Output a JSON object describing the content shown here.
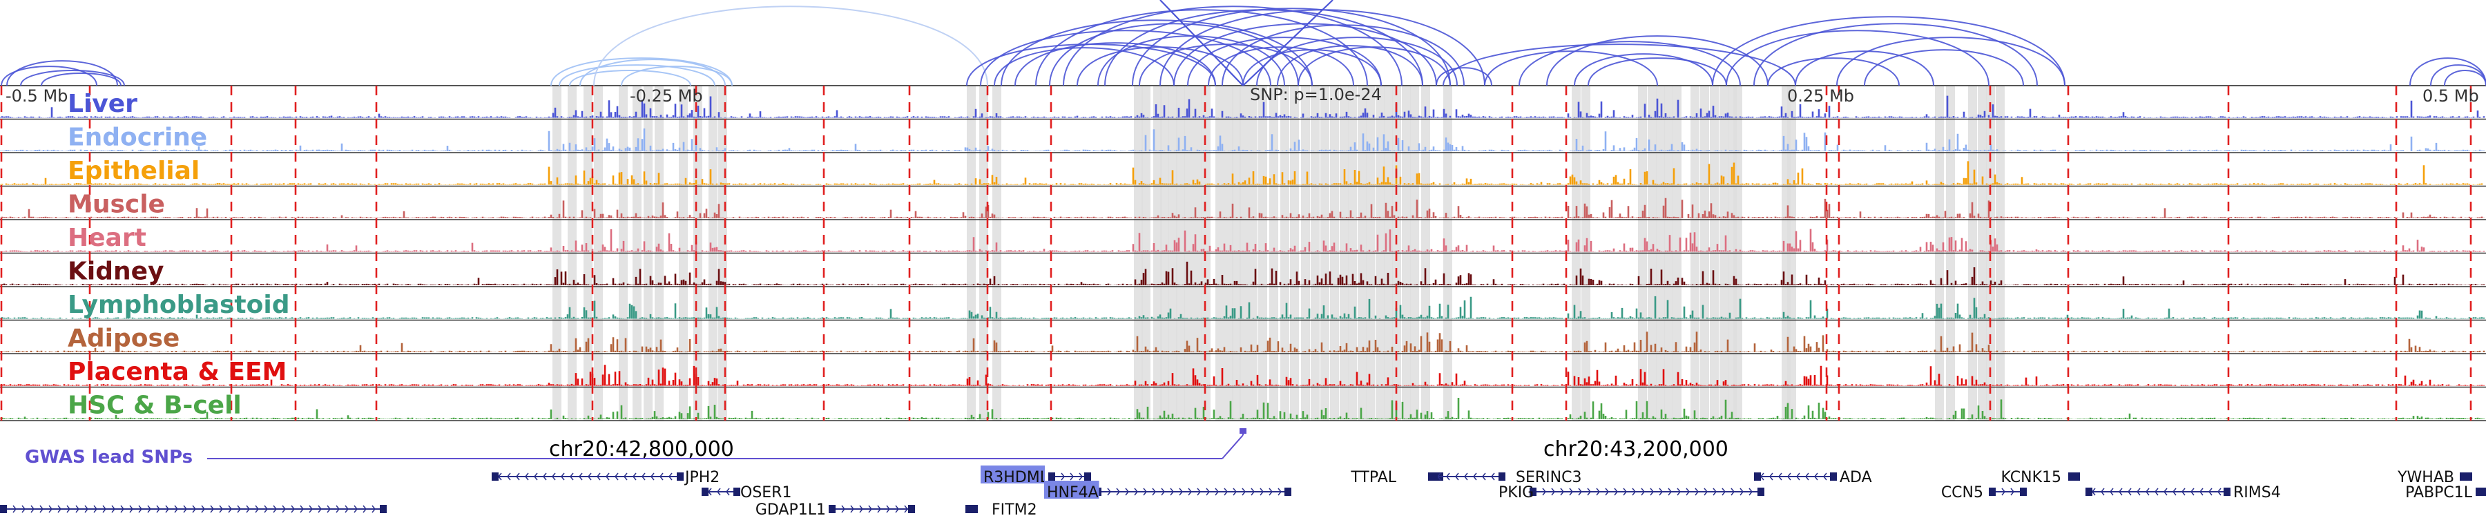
{
  "chart_data": {
    "type": "genome-browser",
    "chromosome": "chr20",
    "tracks": [
      {
        "name": "Liver",
        "color": "#4b55d6"
      },
      {
        "name": "Endocrine",
        "color": "#8fb1f2"
      },
      {
        "name": "Epithelial",
        "color": "#f5a00a"
      },
      {
        "name": "Muscle",
        "color": "#c96060"
      },
      {
        "name": "Heart",
        "color": "#dc6e80"
      },
      {
        "name": "Kidney",
        "color": "#6b0f12"
      },
      {
        "name": "Lymphoblastoid",
        "color": "#3a9a86"
      },
      {
        "name": "Adipose",
        "color": "#b4643c"
      },
      {
        "name": "Placenta & EEM",
        "color": "#e01010"
      },
      {
        "name": "HSC & B-cell",
        "color": "#4ba648"
      }
    ],
    "tick_labels": [
      "-0.5 Mb",
      "-0.25 Mb",
      "0.25 Mb",
      "0.5 Mb"
    ],
    "snp_label": "SNP: p=1.0e-24",
    "coordinate_labels": [
      "chr20:42,800,000",
      "chr20:43,200,000"
    ],
    "gwas_label": "GWAS lead SNPs",
    "gwas_color": "#6050d0",
    "loop_color": "#4b55d6",
    "highlight_color": "#7a86e6",
    "genes": [
      {
        "name": "JPH2",
        "row": 1
      },
      {
        "name": "OSER1",
        "row": 2
      },
      {
        "name": "GDAP1L1",
        "row": 3
      },
      {
        "name": "R3HDML",
        "row": 1,
        "highlight": true
      },
      {
        "name": "HNF4A",
        "row": 2,
        "highlight": true
      },
      {
        "name": "FITM2",
        "row": 3
      },
      {
        "name": "TTPAL",
        "row": 1
      },
      {
        "name": "SERINC3",
        "row": 1
      },
      {
        "name": "PKIG",
        "row": 2
      },
      {
        "name": "ADA",
        "row": 1
      },
      {
        "name": "KCNK15",
        "row": 1
      },
      {
        "name": "CCN5",
        "row": 2
      },
      {
        "name": "RIMS4",
        "row": 2
      },
      {
        "name": "YWHAB",
        "row": 1
      },
      {
        "name": "PABPC1L",
        "row": 2
      }
    ]
  }
}
